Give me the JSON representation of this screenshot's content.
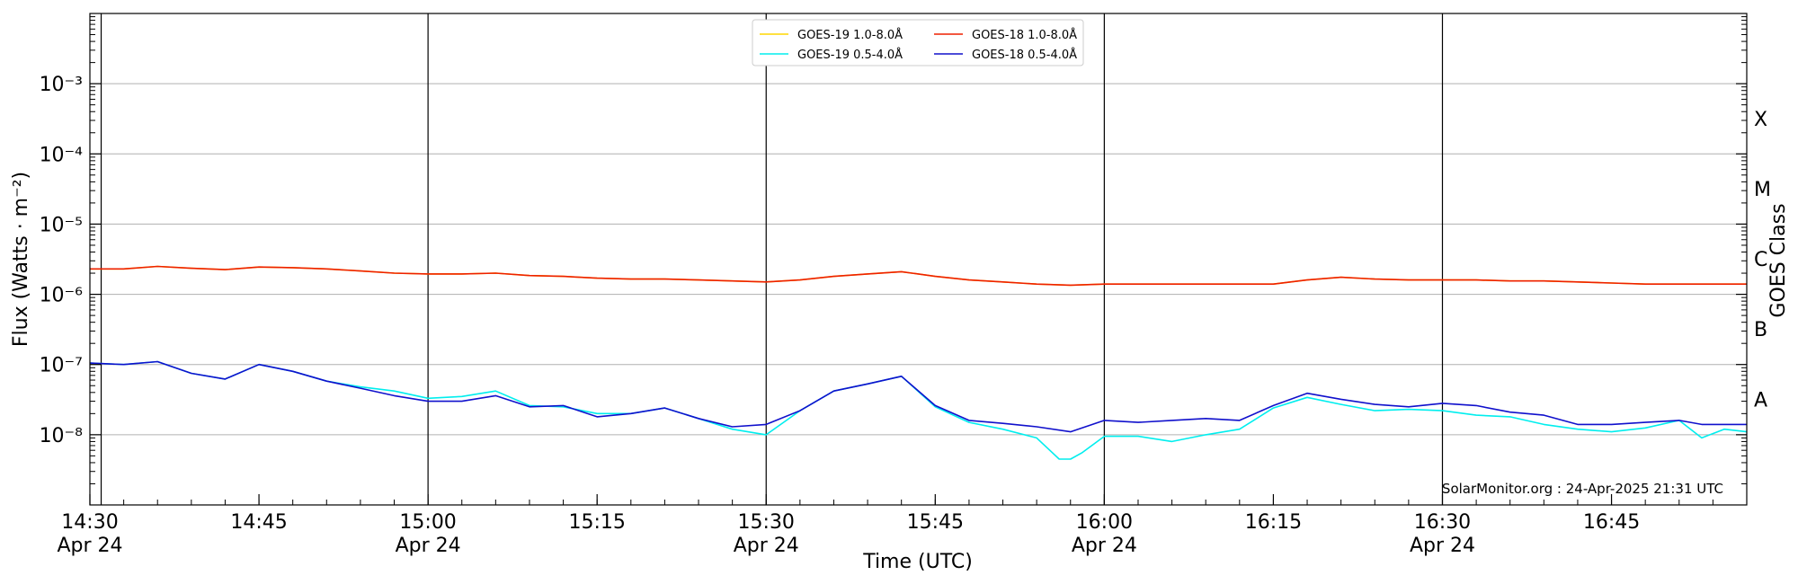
{
  "chart_data": {
    "type": "line",
    "xlabel": "Time (UTC)",
    "ylabel": "Flux (Watts · m⁻²)",
    "y2label": "GOES Class",
    "yscale": "log",
    "ylim": [
      1e-09,
      0.01
    ],
    "xlim_minutes_after_1430": [
      0,
      147
    ],
    "grid": true,
    "legend_position": "top-center",
    "y_ticks": [
      {
        "value": 1e-08,
        "label": "10⁻⁸"
      },
      {
        "value": 1e-07,
        "label": "10⁻⁷"
      },
      {
        "value": 1e-06,
        "label": "10⁻⁶"
      },
      {
        "value": 1e-05,
        "label": "10⁻⁵"
      },
      {
        "value": 0.0001,
        "label": "10⁻⁴"
      },
      {
        "value": 0.001,
        "label": "10⁻³"
      }
    ],
    "x_ticks": [
      {
        "t": 0,
        "time": "14:30",
        "date": "Apr 24"
      },
      {
        "t": 15,
        "time": "14:45",
        "date": ""
      },
      {
        "t": 30,
        "time": "15:00",
        "date": "Apr 24"
      },
      {
        "t": 45,
        "time": "15:15",
        "date": ""
      },
      {
        "t": 60,
        "time": "15:30",
        "date": "Apr 24"
      },
      {
        "t": 75,
        "time": "15:45",
        "date": ""
      },
      {
        "t": 90,
        "time": "16:00",
        "date": "Apr 24"
      },
      {
        "t": 105,
        "time": "16:15",
        "date": ""
      },
      {
        "t": 120,
        "time": "16:30",
        "date": "Apr 24"
      },
      {
        "t": 135,
        "time": "16:45",
        "date": ""
      }
    ],
    "vertical_markers": [
      1,
      30,
      60,
      90,
      120
    ],
    "goes_classes": [
      {
        "label": "A",
        "value": 3.2e-08
      },
      {
        "label": "B",
        "value": 3.2e-07
      },
      {
        "label": "C",
        "value": 3.2e-06
      },
      {
        "label": "M",
        "value": 3.2e-05
      },
      {
        "label": "X",
        "value": 0.00032
      }
    ],
    "series": [
      {
        "name": "GOES-19 1.0-8.0Å",
        "color": "#ffd700",
        "x": [
          0,
          3,
          6,
          9,
          12,
          15,
          18,
          21,
          24,
          27,
          30,
          33,
          36,
          39,
          42,
          45,
          48,
          51,
          54,
          57,
          60,
          63,
          66,
          69,
          72,
          75,
          78,
          81,
          84,
          87,
          90,
          93,
          96,
          99,
          102,
          105,
          108,
          111,
          114,
          117,
          120,
          123,
          126,
          129,
          132,
          135,
          138,
          141,
          144,
          147
        ],
        "y": [
          2.3e-06,
          2.3e-06,
          2.5e-06,
          2.35e-06,
          2.25e-06,
          2.45e-06,
          2.4e-06,
          2.3e-06,
          2.15e-06,
          2e-06,
          1.95e-06,
          1.95e-06,
          2e-06,
          1.85e-06,
          1.8e-06,
          1.7e-06,
          1.65e-06,
          1.65e-06,
          1.6e-06,
          1.55e-06,
          1.5e-06,
          1.6e-06,
          1.8e-06,
          1.95e-06,
          2.1e-06,
          1.8e-06,
          1.6e-06,
          1.5e-06,
          1.4e-06,
          1.35e-06,
          1.4e-06,
          1.4e-06,
          1.4e-06,
          1.4e-06,
          1.4e-06,
          1.4e-06,
          1.6e-06,
          1.75e-06,
          1.65e-06,
          1.6e-06,
          1.6e-06,
          1.6e-06,
          1.55e-06,
          1.55e-06,
          1.5e-06,
          1.45e-06,
          1.4e-06,
          1.4e-06,
          1.4e-06,
          1.4e-06
        ]
      },
      {
        "name": "GOES-18 1.0-8.0Å",
        "color": "#ee2000",
        "x": [
          0,
          3,
          6,
          9,
          12,
          15,
          18,
          21,
          24,
          27,
          30,
          33,
          36,
          39,
          42,
          45,
          48,
          51,
          54,
          57,
          60,
          63,
          66,
          69,
          72,
          75,
          78,
          81,
          84,
          87,
          90,
          93,
          96,
          99,
          102,
          105,
          108,
          111,
          114,
          117,
          120,
          123,
          126,
          129,
          132,
          135,
          138,
          141,
          144,
          147
        ],
        "y": [
          2.3e-06,
          2.3e-06,
          2.5e-06,
          2.35e-06,
          2.25e-06,
          2.45e-06,
          2.4e-06,
          2.3e-06,
          2.15e-06,
          2e-06,
          1.95e-06,
          1.95e-06,
          2e-06,
          1.85e-06,
          1.8e-06,
          1.7e-06,
          1.65e-06,
          1.65e-06,
          1.6e-06,
          1.55e-06,
          1.5e-06,
          1.6e-06,
          1.8e-06,
          1.95e-06,
          2.1e-06,
          1.8e-06,
          1.6e-06,
          1.5e-06,
          1.4e-06,
          1.35e-06,
          1.4e-06,
          1.4e-06,
          1.4e-06,
          1.4e-06,
          1.4e-06,
          1.4e-06,
          1.6e-06,
          1.75e-06,
          1.65e-06,
          1.6e-06,
          1.6e-06,
          1.6e-06,
          1.55e-06,
          1.55e-06,
          1.5e-06,
          1.45e-06,
          1.4e-06,
          1.4e-06,
          1.4e-06,
          1.4e-06
        ]
      },
      {
        "name": "GOES-19 0.5-4.0Å",
        "color": "#00eeee",
        "x": [
          0,
          3,
          6,
          9,
          12,
          15,
          18,
          21,
          24,
          27,
          30,
          33,
          36,
          39,
          42,
          45,
          48,
          51,
          54,
          57,
          60,
          63,
          66,
          69,
          72,
          75,
          78,
          81,
          84,
          86,
          87,
          88,
          90,
          93,
          96,
          99,
          102,
          105,
          108,
          111,
          114,
          117,
          120,
          123,
          126,
          129,
          132,
          135,
          138,
          141,
          143,
          145,
          147
        ],
        "y": [
          1.05e-07,
          1e-07,
          1.1e-07,
          7.5e-08,
          6.2e-08,
          1e-07,
          8e-08,
          5.8e-08,
          4.8e-08,
          4.2e-08,
          3.3e-08,
          3.5e-08,
          4.2e-08,
          2.6e-08,
          2.5e-08,
          2e-08,
          2e-08,
          2.4e-08,
          1.7e-08,
          1.2e-08,
          1e-08,
          2.2e-08,
          4.2e-08,
          5.3e-08,
          6.8e-08,
          2.5e-08,
          1.5e-08,
          1.2e-08,
          9e-09,
          4.5e-09,
          4.5e-09,
          5.5e-09,
          9.5e-09,
          9.5e-09,
          8e-09,
          1e-08,
          1.2e-08,
          2.4e-08,
          3.4e-08,
          2.7e-08,
          2.2e-08,
          2.3e-08,
          2.2e-08,
          1.9e-08,
          1.8e-08,
          1.4e-08,
          1.2e-08,
          1.1e-08,
          1.25e-08,
          1.6e-08,
          9e-09,
          1.2e-08,
          1.1e-08
        ]
      },
      {
        "name": "GOES-18 0.5-4.0Å",
        "color": "#1010cc",
        "x": [
          0,
          3,
          6,
          9,
          12,
          15,
          18,
          21,
          24,
          27,
          30,
          33,
          36,
          39,
          42,
          45,
          48,
          51,
          54,
          57,
          60,
          63,
          66,
          69,
          72,
          75,
          78,
          81,
          84,
          87,
          90,
          93,
          96,
          99,
          102,
          105,
          108,
          111,
          114,
          117,
          120,
          123,
          126,
          129,
          132,
          135,
          138,
          141,
          143,
          145,
          147
        ],
        "y": [
          1.05e-07,
          1e-07,
          1.1e-07,
          7.5e-08,
          6.2e-08,
          1e-07,
          8e-08,
          5.8e-08,
          4.6e-08,
          3.6e-08,
          3e-08,
          3e-08,
          3.6e-08,
          2.5e-08,
          2.6e-08,
          1.8e-08,
          2e-08,
          2.4e-08,
          1.7e-08,
          1.3e-08,
          1.4e-08,
          2.2e-08,
          4.2e-08,
          5.3e-08,
          6.8e-08,
          2.6e-08,
          1.6e-08,
          1.45e-08,
          1.3e-08,
          1.1e-08,
          1.6e-08,
          1.5e-08,
          1.6e-08,
          1.7e-08,
          1.6e-08,
          2.6e-08,
          3.9e-08,
          3.2e-08,
          2.7e-08,
          2.5e-08,
          2.8e-08,
          2.6e-08,
          2.1e-08,
          1.9e-08,
          1.4e-08,
          1.4e-08,
          1.5e-08,
          1.6e-08,
          1.4e-08,
          1.4e-08,
          1.4e-08
        ]
      }
    ]
  },
  "credit": "SolarMonitor.org : 24-Apr-2025 21:31 UTC"
}
